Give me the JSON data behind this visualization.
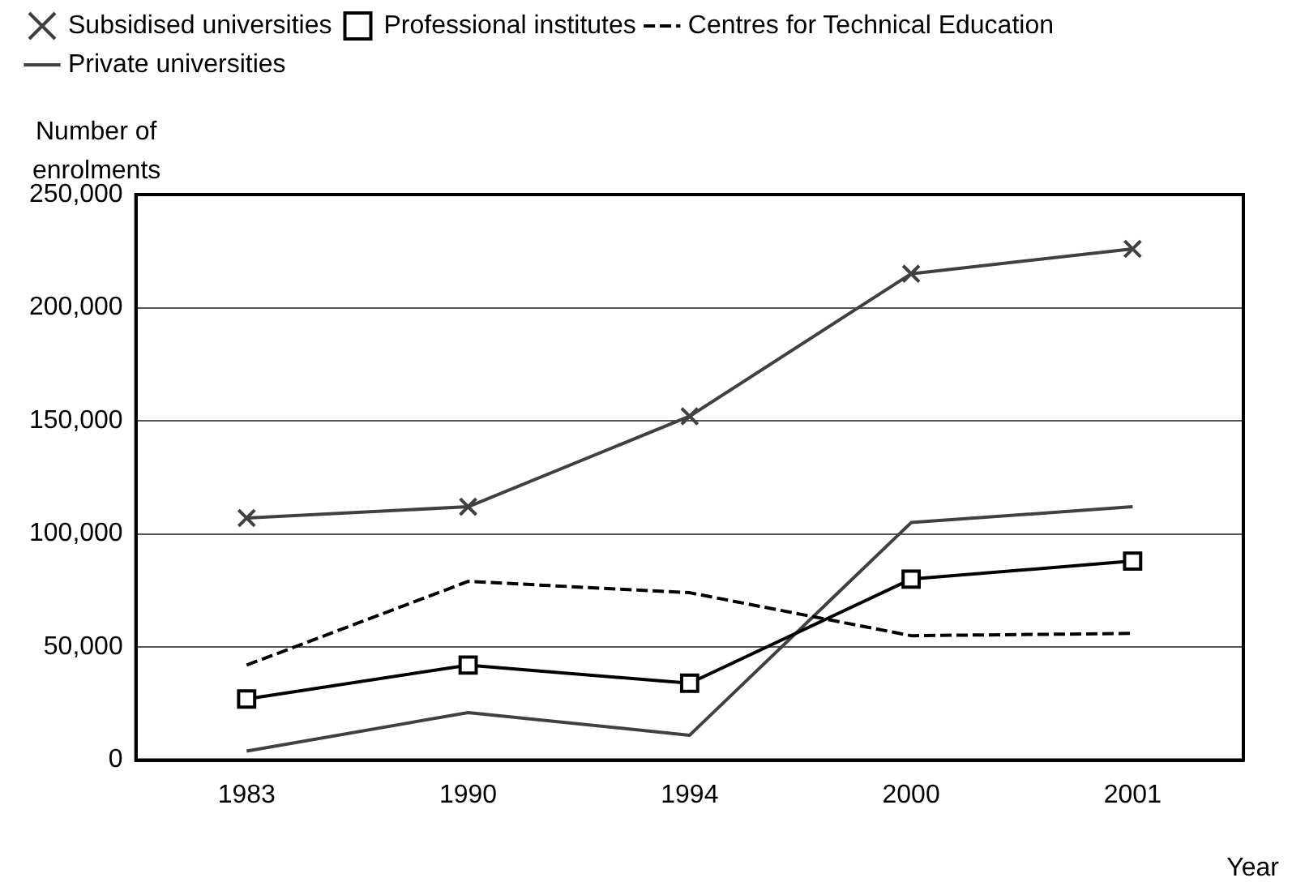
{
  "chart_data": {
    "type": "line",
    "xlabel": "Year",
    "ylabel": "Number of enrolments",
    "categories": [
      "1983",
      "1990",
      "1994",
      "2000",
      "2001"
    ],
    "series": [
      {
        "name": "Subsidised universities",
        "color": "#404040",
        "marker": "cross",
        "line_style": "solid",
        "values": [
          107000,
          112000,
          152000,
          215000,
          226000
        ]
      },
      {
        "name": "Professional institutes",
        "color": "#000000",
        "marker": "square",
        "line_style": "solid",
        "values": [
          27000,
          42000,
          34000,
          80000,
          88000
        ]
      },
      {
        "name": "Centres for Technical Education",
        "color": "#000000",
        "marker": "none",
        "line_style": "dashed",
        "values": [
          42000,
          79000,
          74000,
          55000,
          56000
        ]
      },
      {
        "name": "Private universities",
        "color": "#404040",
        "marker": "none",
        "line_style": "solid",
        "values": [
          4000,
          21000,
          11000,
          105000,
          112000
        ]
      }
    ],
    "ylim": [
      0,
      250000
    ],
    "yticks": [
      0,
      {
        "value": 50000,
        "label": "50,000"
      },
      {
        "value": 100000,
        "label": "100,000"
      },
      {
        "value": 150000,
        "label": "150,000"
      },
      {
        "value": 200000,
        "label": "200,000"
      },
      {
        "value": 250000,
        "label": "250,000"
      }
    ],
    "grid": "y",
    "legend": "top"
  }
}
